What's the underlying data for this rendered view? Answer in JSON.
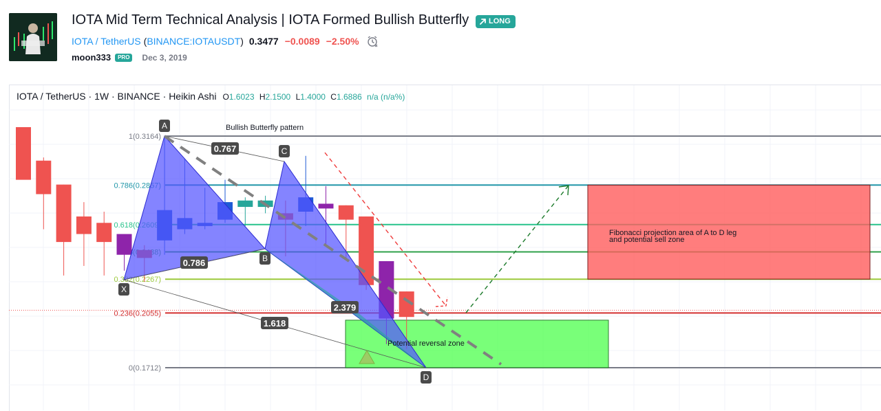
{
  "header": {
    "title": "IOTA Mid Term Technical Analysis | IOTA Formed Bullish Butterfly",
    "badge": "LONG",
    "symbol": "IOTA / TetherUS",
    "exchange_open": "(",
    "exchange": "BINANCE:IOTAUSDT",
    "exchange_close": ")",
    "price": "0.3477",
    "change": "−0.0089",
    "change_pct": "−2.50%",
    "author": "moon333",
    "author_badge": "PRO",
    "date": "Dec 3, 2019"
  },
  "chart_info": {
    "symbol": "IOTA / TetherUS · 1W · BINANCE · Heikin Ashi",
    "open_label": "O",
    "open": "1.6023",
    "high_label": "H",
    "high": "2.1500",
    "low_label": "L",
    "low": "1.4000",
    "close_label": "C",
    "close": "1.6886",
    "na": "n/a (n/a%)"
  },
  "colors": {
    "up": "#1e5bd6",
    "up_alt": "#26a69a",
    "down": "#ef5350",
    "down_alt": "#8e24aa",
    "butterfly": "#5555ff",
    "reversal_zone": "#4cff4c",
    "sell_zone": "#ff5c5c"
  },
  "chart_data": {
    "type": "candlestick",
    "title": "Bullish Butterfly pattern",
    "ylim": [
      0.166,
      0.33
    ],
    "candles": [
      {
        "o": 0.322,
        "h": 0.322,
        "l": 0.29,
        "c": 0.289
      },
      {
        "o": 0.301,
        "h": 0.303,
        "l": 0.258,
        "c": 0.28
      },
      {
        "o": 0.286,
        "h": 0.286,
        "l": 0.229,
        "c": 0.25
      },
      {
        "o": 0.266,
        "h": 0.275,
        "l": 0.235,
        "c": 0.255
      },
      {
        "o": 0.262,
        "h": 0.269,
        "l": 0.229,
        "c": 0.25
      },
      {
        "o": 0.255,
        "h": 0.255,
        "l": 0.232,
        "c": 0.242
      },
      {
        "o": 0.245,
        "h": 0.248,
        "l": 0.225,
        "c": 0.24
      },
      {
        "o": 0.251,
        "h": 0.316,
        "l": 0.242,
        "c": 0.27
      },
      {
        "o": 0.258,
        "h": 0.302,
        "l": 0.255,
        "c": 0.265
      },
      {
        "o": 0.26,
        "h": 0.284,
        "l": 0.258,
        "c": 0.262
      },
      {
        "o": 0.264,
        "h": 0.289,
        "l": 0.262,
        "c": 0.275
      },
      {
        "o": 0.272,
        "h": 0.278,
        "l": 0.26,
        "c": 0.276
      },
      {
        "o": 0.272,
        "h": 0.279,
        "l": 0.268,
        "c": 0.276
      },
      {
        "o": 0.268,
        "h": 0.276,
        "l": 0.241,
        "c": 0.264
      },
      {
        "o": 0.269,
        "h": 0.304,
        "l": 0.26,
        "c": 0.278
      },
      {
        "o": 0.274,
        "h": 0.285,
        "l": 0.248,
        "c": 0.271
      },
      {
        "o": 0.273,
        "h": 0.273,
        "l": 0.24,
        "c": 0.264
      },
      {
        "o": 0.266,
        "h": 0.266,
        "l": 0.22,
        "c": 0.223
      },
      {
        "o": 0.238,
        "h": 0.238,
        "l": 0.186,
        "c": 0.202
      },
      {
        "o": 0.219,
        "h": 0.219,
        "l": 0.183,
        "c": 0.203
      }
    ],
    "fib_levels": [
      {
        "ratio": "1",
        "value": 0.3164,
        "label": "1(0.3164)",
        "color": "#787b86"
      },
      {
        "ratio": "0.786",
        "value": 0.2857,
        "label": "0.786(0.2857)",
        "color": "#2196a8"
      },
      {
        "ratio": "0.618",
        "value": 0.2609,
        "label": "0.618(0.2609)",
        "color": "#26c28a"
      },
      {
        "ratio": "0.5",
        "value": 0.2438,
        "label": "0.5(0.2438)",
        "color": "#2ea04a"
      },
      {
        "ratio": "0.382",
        "value": 0.2267,
        "label": "0.382(0.2267)",
        "color": "#9bc93a"
      },
      {
        "ratio": "0.236",
        "value": 0.2055,
        "label": "0.236(0.2055)",
        "color": "#d32f2f"
      },
      {
        "ratio": "0",
        "value": 0.1712,
        "label": "0(0.1712)",
        "color": "#787b86"
      }
    ],
    "pattern_points": [
      {
        "name": "X",
        "bar": 5.2,
        "value": 0.2267
      },
      {
        "name": "A",
        "bar": 7.2,
        "value": 0.3164
      },
      {
        "name": "B",
        "bar": 12.2,
        "value": 0.2438
      },
      {
        "name": "C",
        "bar": 13.2,
        "value": 0.3038
      },
      {
        "name": "D",
        "bar": 20.3,
        "value": 0.1712
      }
    ],
    "pattern_ratios": [
      {
        "label": "0.767",
        "from": "A",
        "to": "C"
      },
      {
        "label": "0.786",
        "from": "X",
        "to": "B"
      },
      {
        "label": "1.618",
        "from": "X",
        "to": "D"
      },
      {
        "label": "2.379",
        "from": "B",
        "to": "D"
      }
    ],
    "annotations": {
      "reversal_zone": "Potential reversal zone",
      "sell_zone_line1": "Fibonacci projection area of A to D leg",
      "sell_zone_line2": "and potential sell zone"
    },
    "current_price": 0.2055
  }
}
